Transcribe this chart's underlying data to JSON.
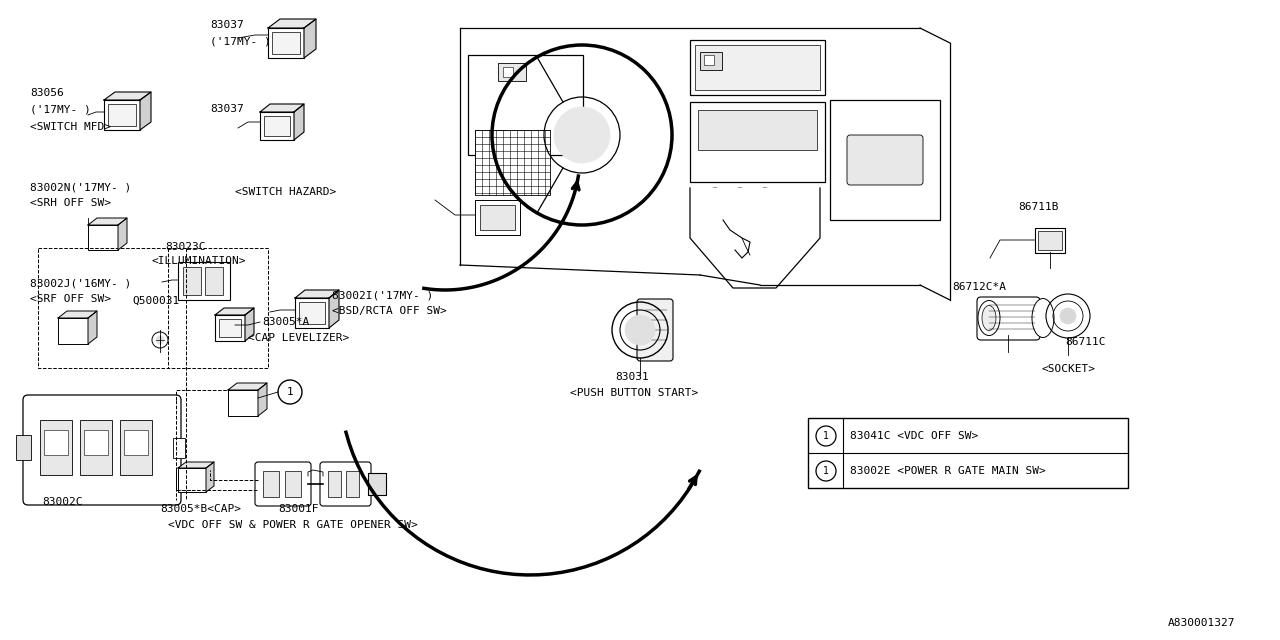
{
  "bg_color": "#ffffff",
  "line_color": "#000000",
  "diagram_id": "A830001327",
  "fig_w": 12.8,
  "fig_h": 6.4,
  "dpi": 100,
  "xlim": [
    0,
    1280
  ],
  "ylim": [
    0,
    640
  ],
  "labels": {
    "83037_top_num": "83037",
    "83037_top_sub": "('17MY- )",
    "83037_mid": "83037",
    "83056_num": "83056",
    "83056_sub": "('17MY- )",
    "switch_mfd": "<SWITCH MFD>",
    "switch_hazard": "<SWITCH HAZARD>",
    "83002N_line1": "83002N('17MY- )",
    "83002N_line2": "<SRH OFF SW>",
    "83023C_num": "83023C",
    "83023C_sub": "<ILLUMINATION>",
    "83002J_line1": "83002J('16MY- )",
    "83002J_line2": "<SRF OFF SW>",
    "Q500031": "Q500031",
    "83002I_line1": "83002I('17MY- )",
    "83002I_line2": "<BSD/RCTA OFF SW>",
    "83005A_line1": "83005*A",
    "83005A_line2": "<CAP LEVELIZER>",
    "83002C": "83002C",
    "83005B": "83005*B<CAP>",
    "83001F_num": "83001F",
    "83001F_sub": "<VDC OFF SW & POWER R GATE OPENER SW>",
    "83031_num": "83031",
    "83031_sub": "<PUSH BUTTON START>",
    "86711B": "86711B",
    "86712CA": "86712C*A",
    "86711C": "86711C",
    "socket": "<SOCKET>",
    "legend1": "83041C <VDC OFF SW>",
    "legend2": "83002E <POWER R GATE MAIN SW>"
  }
}
